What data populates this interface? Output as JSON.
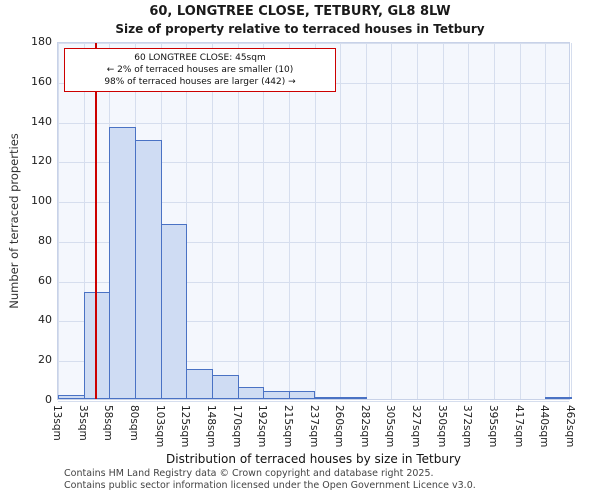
{
  "chart_data": {
    "type": "bar",
    "title": "60, LONGTREE CLOSE, TETBURY, GL8 8LW",
    "subtitle": "Size of property relative to terraced houses in Tetbury",
    "xlabel": "Distribution of terraced houses by size in Tetbury",
    "ylabel": "Number of terraced properties",
    "ylim": [
      0,
      180
    ],
    "yticks": [
      0,
      20,
      40,
      60,
      80,
      100,
      120,
      140,
      160,
      180
    ],
    "x_min_sqm": 13,
    "x_max_sqm": 462,
    "bin_labels": [
      "13sqm",
      "35sqm",
      "58sqm",
      "80sqm",
      "103sqm",
      "125sqm",
      "148sqm",
      "170sqm",
      "192sqm",
      "215sqm",
      "237sqm",
      "260sqm",
      "282sqm",
      "305sqm",
      "327sqm",
      "350sqm",
      "372sqm",
      "395sqm",
      "417sqm",
      "440sqm",
      "462sqm"
    ],
    "values": [
      2,
      54,
      137,
      130,
      88,
      15,
      12,
      6,
      4,
      4,
      1,
      1,
      0,
      0,
      0,
      0,
      0,
      0,
      0,
      1
    ],
    "grid": true,
    "legend": "none",
    "bar_fill": "#cfdcf3",
    "bar_border": "#4a72c4",
    "marker": {
      "value_sqm": 45,
      "color": "#cc0000"
    },
    "annotation": {
      "line1": "60 LONGTREE CLOSE: 45sqm",
      "line2": "← 2% of terraced houses are smaller (10)",
      "line3": "98% of terraced houses are larger (442) →"
    }
  },
  "footer": {
    "line1": "Contains HM Land Registry data © Crown copyright and database right 2025.",
    "line2": "Contains public sector information licensed under the Open Government Licence v3.0."
  }
}
